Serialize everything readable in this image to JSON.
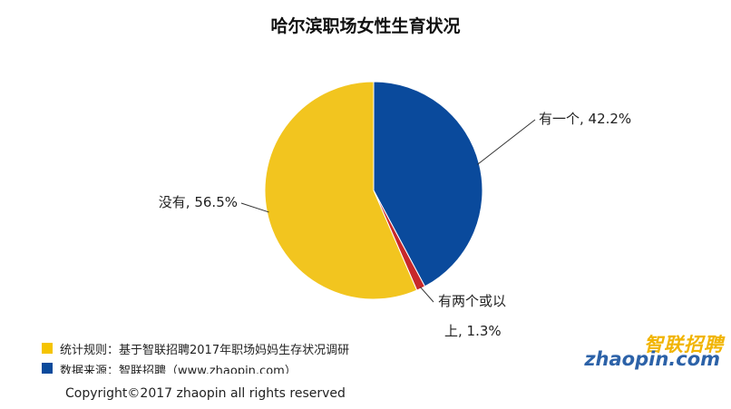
{
  "chart_data": {
    "type": "pie",
    "title": "哈尔滨职场女性生育状况",
    "slices": [
      {
        "label": "有一个",
        "value": 42.2,
        "display": "有一个, 42.2%",
        "color": "#0a4a9c"
      },
      {
        "label": "有两个或以上",
        "value": 1.3,
        "display_lines": [
          "有两个或以",
          "上, 1.3%"
        ],
        "color": "#c8282a"
      },
      {
        "label": "没有",
        "value": 56.5,
        "display": "没有, 56.5%",
        "color": "#f2c51f"
      }
    ],
    "start": "12 o'clock",
    "direction": "clockwise"
  },
  "legend": [
    {
      "text": "统计规则：基于智联招聘2017年职场妈妈生存状况调研",
      "color": "#f5c400"
    },
    {
      "text": "数据来源：智联招聘（www.zhaopin.com）",
      "color": "#0a4a9c"
    }
  ],
  "footer": {
    "copyright": "Copyright©2017 zhaopin all rights reserved"
  },
  "logo": {
    "cn": "智联招聘",
    "en": "zhaopin.com"
  }
}
